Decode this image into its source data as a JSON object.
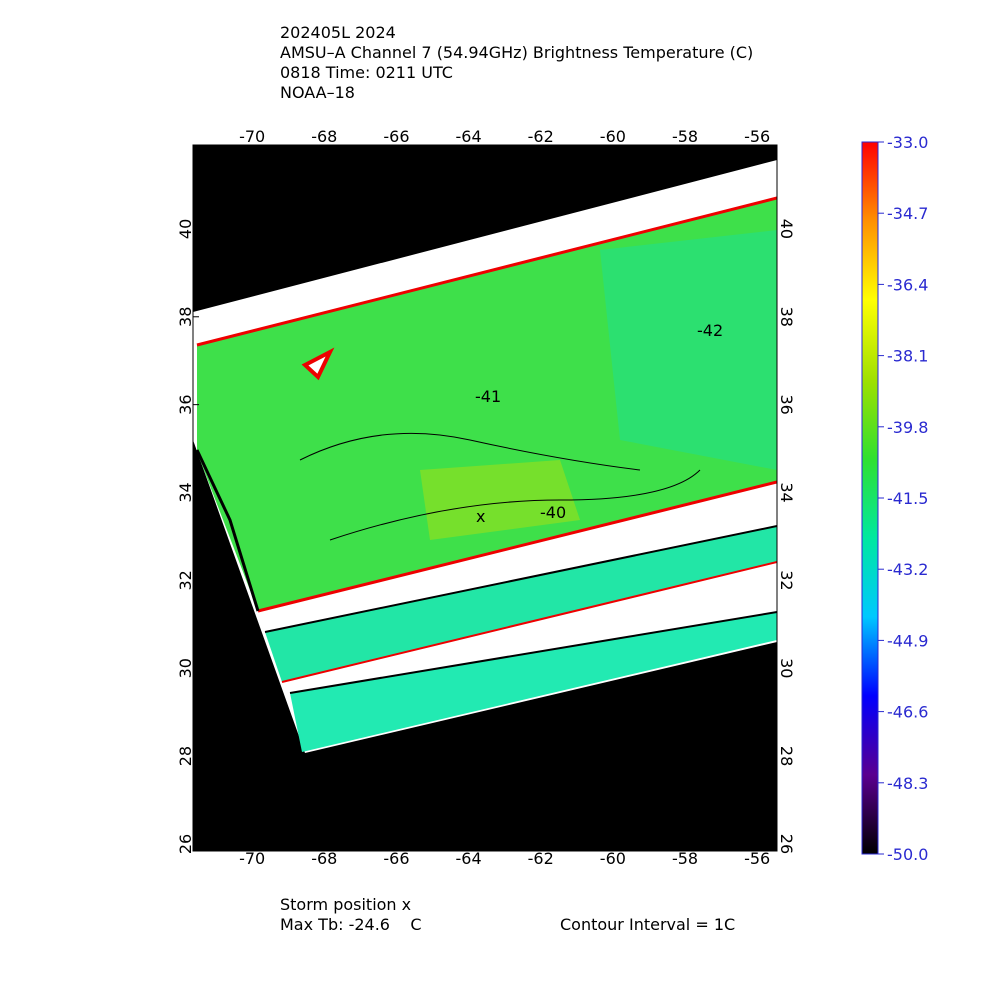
{
  "chart_data": {
    "type": "map",
    "title_lines": [
      "202405L 2024",
      "AMSU–A Channel 7 (54.94GHz) Brightness Temperature (C)",
      "0818 Time: 0211 UTC",
      "NOAA–18"
    ],
    "xlim": [
      -71.64,
      -55.45
    ],
    "xticks": [
      -70,
      -68,
      -66,
      -64,
      -62,
      -60,
      -58,
      -56
    ],
    "ylim": [
      25.84,
      41.91
    ],
    "yticks": [
      26,
      28,
      30,
      32,
      34,
      36,
      38,
      40
    ],
    "grid": true,
    "colorbar": {
      "lim": [
        -50,
        -33
      ],
      "ticks": [
        {
          "value": -33,
          "label": "-33.0"
        },
        -34.7,
        -36.4,
        -38.1,
        -39.8,
        -41.5,
        -43.2,
        -44.9,
        -46.6,
        -48.3,
        {
          "value": -50,
          "label": "-50.0"
        }
      ],
      "colors": [
        "#000000",
        "#5a0090",
        "#0000ff",
        "#00c8ff",
        "#00e8a0",
        "#30e030",
        "#a0e000",
        "#ffff00",
        "#ff9000",
        "#ff0000"
      ]
    },
    "annotations": [
      "-41",
      "-42",
      "-40",
      "x"
    ],
    "footer": [
      "Storm position x",
      "Max Tb: -24.6    C",
      "Contour Interval = 1C"
    ]
  }
}
